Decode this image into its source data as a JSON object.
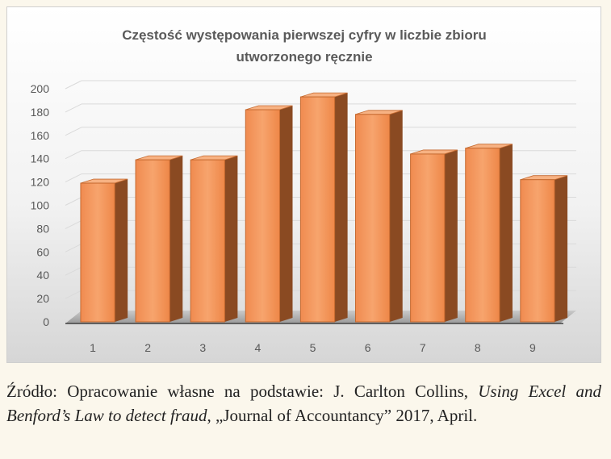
{
  "chart_data": {
    "type": "bar",
    "title": "Częstość występowania pierwszej cyfry w liczbie zbioru utworzonego ręcznie",
    "categories": [
      "1",
      "2",
      "3",
      "4",
      "5",
      "6",
      "7",
      "8",
      "9"
    ],
    "values": [
      119,
      139,
      139,
      182,
      193,
      178,
      144,
      149,
      122
    ],
    "ylim": [
      0,
      200
    ],
    "yticks": [
      0,
      20,
      40,
      60,
      80,
      100,
      120,
      140,
      160,
      180,
      200
    ],
    "xlabel": "",
    "ylabel": "",
    "grid": true,
    "legend": "none",
    "bar_color": "#f4935a"
  },
  "caption": {
    "prefix": "Źródło: Opracowanie własne na podstawie: J. Carlton Collins, ",
    "italic": "Using Excel and Benford’s Law to detect fraud",
    "suffix": ", „Journal of Accountancy” 2017, April."
  }
}
